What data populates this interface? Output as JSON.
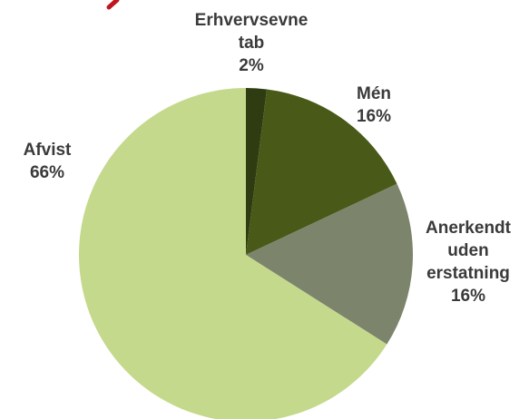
{
  "chart_data": {
    "type": "pie",
    "title": "",
    "start_angle_deg": 0,
    "direction": "clockwise",
    "slices": [
      {
        "label": "Erhvervsevne tab",
        "label_lines": [
          "Erhvervsevne",
          "tab"
        ],
        "value": 2,
        "value_text": "2%",
        "color": "#2f3c12"
      },
      {
        "label": "Mén",
        "label_lines": [
          "Mén"
        ],
        "value": 16,
        "value_text": "16%",
        "color": "#485918"
      },
      {
        "label": "Anerkendt uden erstatning",
        "label_lines": [
          "Anerkendt",
          "uden",
          "erstatning"
        ],
        "value": 16,
        "value_text": "16%",
        "color": "#7c846c"
      },
      {
        "label": "Afvist",
        "label_lines": [
          "Afvist"
        ],
        "value": 66,
        "value_text": "66%",
        "color": "#c5d98c"
      }
    ]
  },
  "decoration": {
    "corner_stroke_color": "#c0151c"
  }
}
